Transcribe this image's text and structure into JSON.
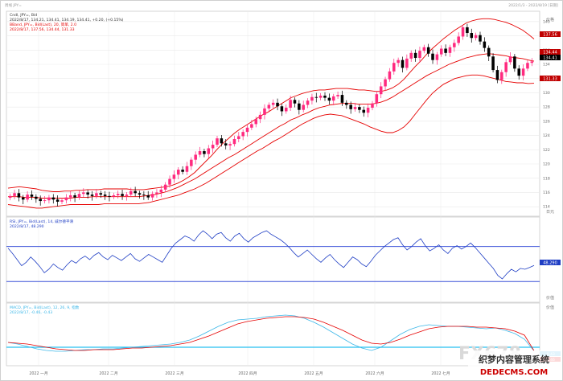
{
  "header": {
    "left": "周线 JPY=",
    "right": "2022/1/3 - 2022/8/19 [日期]"
  },
  "legend": {
    "main": [
      "Cndl, JPY=, Bid",
      "2022/8/17, 134.21, 134.41, 134.19, 134.41, +0.20, (+0.15%)"
    ],
    "bband": [
      "BBand, JPY=, Bid(Last), 20, 简单, 2.0",
      "2022/8/17, 137.56, 134.44, 131.33"
    ],
    "rsi": [
      "RSI, JPY=, Bid(Last), 14, 威尔德平滑",
      "2022/8/17, 48.290"
    ],
    "macd": [
      "MACD, JPY=, Bid(Last), 12, 26, 9, 指数",
      "2022/8/17, -0.46, -0.43"
    ]
  },
  "price_labels": {
    "bb_upper": "137.56",
    "bb_mid": "134.44",
    "last": "134.41",
    "bb_lower": "131.33",
    "rsi_last": "48.290",
    "macd_a": "-0.43",
    "macd_b": "-0.46"
  },
  "axis_titles": {
    "price": "价格",
    "price_unit": "日元",
    "rsi": "价值",
    "macd": "价值"
  },
  "x_ticks": [
    "2022 一月",
    "2022 二月",
    "2022 三月",
    "2022 四月",
    "2022 五月",
    "2022 六月",
    "2022 七月"
  ],
  "watermark": {
    "text1": "FX678",
    "cn": "织梦内容管理系统",
    "url": "DEDECMS.COM"
  },
  "colors": {
    "candle_up": "#ff2a7f",
    "candle_down": "#000000",
    "bband": "#e60000",
    "rsi": "#1f3ec4",
    "rsi_ref": "#3a50d8",
    "macd": "#3cb7e8",
    "signal": "#e60000",
    "zero": "#27c0f0",
    "grid": "#e9e9e9"
  },
  "chart_data": [
    {
      "type": "candlestick",
      "ylim": [
        113,
        141
      ],
      "y_ticks": [
        114,
        116,
        118,
        120,
        122,
        124,
        126,
        128,
        130,
        132,
        134,
        136,
        138,
        140
      ],
      "close": [
        115.5,
        115.9,
        115.3,
        115.0,
        115.7,
        115.4,
        115.1,
        114.8,
        114.9,
        115.3,
        115.0,
        114.7,
        114.9,
        115.3,
        115.6,
        115.3,
        115.8,
        116.0,
        115.7,
        115.5,
        115.9,
        115.7,
        115.5,
        115.4,
        115.6,
        115.8,
        115.5,
        115.7,
        116.2,
        115.9,
        115.7,
        115.6,
        115.3,
        115.8,
        116.0,
        116.4,
        117.1,
        117.9,
        118.5,
        119.2,
        118.9,
        119.7,
        120.6,
        121.3,
        121.8,
        121.4,
        122.2,
        122.7,
        123.6,
        122.9,
        122.6,
        122.8,
        123.5,
        123.9,
        124.5,
        125.1,
        125.6,
        126.3,
        126.9,
        127.8,
        128.3,
        128.6,
        128.1,
        127.4,
        127.9,
        129.0,
        128.5,
        127.6,
        128.3,
        128.9,
        129.4,
        129.3,
        129.6,
        129.3,
        128.9,
        129.5,
        129.7,
        128.6,
        128.3,
        127.7,
        128.0,
        127.6,
        127.2,
        127.9,
        128.5,
        129.8,
        130.9,
        131.9,
        133.0,
        134.2,
        134.6,
        133.5,
        134.8,
        135.6,
        134.9,
        135.9,
        136.4,
        135.5,
        134.6,
        135.4,
        136.2,
        135.6,
        136.4,
        137.0,
        137.9,
        139.2,
        138.4,
        137.7,
        138.1,
        137.2,
        136.3,
        135.1,
        133.2,
        131.8,
        132.9,
        134.3,
        135.1,
        133.4,
        132.4,
        133.4,
        134.2,
        134.41
      ],
      "bb_upper": [
        116.6,
        116.7,
        116.8,
        116.7,
        116.6,
        116.5,
        116.3,
        116.2,
        116.1,
        116.1,
        116.2,
        116.2,
        116.3,
        116.3,
        116.4,
        116.4,
        116.4,
        116.5,
        116.5,
        116.5,
        116.5,
        116.5,
        116.4,
        116.4,
        116.4,
        116.5,
        116.6,
        116.7,
        116.8,
        117.0,
        117.3,
        117.7,
        118.2,
        118.8,
        119.6,
        120.4,
        121.2,
        122.1,
        122.9,
        123.6,
        124.3,
        124.9,
        125.4,
        125.9,
        126.4,
        126.9,
        127.3,
        127.8,
        128.3,
        128.8,
        129.3,
        129.6,
        129.9,
        130.1,
        130.3,
        130.4,
        130.4,
        130.5,
        130.6,
        130.6,
        130.6,
        130.5,
        130.4,
        130.4,
        130.3,
        130.2,
        130.2,
        130.4,
        130.7,
        131.2,
        131.9,
        132.8,
        133.7,
        134.5,
        135.4,
        136.2,
        136.9,
        137.6,
        138.2,
        138.8,
        139.3,
        139.8,
        140.1,
        140.3,
        140.4,
        140.4,
        140.3,
        140.1,
        139.9,
        139.6,
        139.2,
        138.8,
        138.2,
        137.56
      ],
      "bb_mid": [
        115.4,
        115.4,
        115.4,
        115.3,
        115.3,
        115.3,
        115.2,
        115.2,
        115.2,
        115.2,
        115.2,
        115.2,
        115.3,
        115.3,
        115.3,
        115.4,
        115.4,
        115.4,
        115.4,
        115.4,
        115.4,
        115.4,
        115.4,
        115.4,
        115.5,
        115.6,
        115.7,
        115.9,
        116.1,
        116.4,
        116.7,
        117.1,
        117.5,
        117.9,
        118.4,
        118.9,
        119.4,
        119.9,
        120.4,
        120.9,
        121.3,
        121.8,
        122.3,
        122.8,
        123.3,
        123.8,
        124.3,
        124.8,
        125.3,
        125.7,
        126.2,
        126.5,
        126.9,
        127.2,
        127.6,
        127.9,
        128.1,
        128.3,
        128.4,
        128.5,
        128.5,
        128.5,
        128.4,
        128.4,
        128.4,
        128.5,
        128.7,
        129.0,
        129.4,
        129.9,
        130.4,
        130.9,
        131.4,
        131.9,
        132.4,
        132.8,
        133.2,
        133.6,
        134.0,
        134.3,
        134.6,
        134.9,
        135.1,
        135.3,
        135.4,
        135.5,
        135.4,
        135.3,
        135.2,
        135.0,
        134.9,
        134.8,
        134.6,
        134.44
      ],
      "bb_lower": [
        114.3,
        114.2,
        114.1,
        114.0,
        113.9,
        113.8,
        113.8,
        113.9,
        114.0,
        114.1,
        114.2,
        114.3,
        114.3,
        114.3,
        114.3,
        114.3,
        114.3,
        114.4,
        114.4,
        114.4,
        114.4,
        114.4,
        114.4,
        114.4,
        114.5,
        114.6,
        114.8,
        115.0,
        115.2,
        115.4,
        115.6,
        115.9,
        116.2,
        116.5,
        116.9,
        117.3,
        117.8,
        118.3,
        118.8,
        119.3,
        119.8,
        120.3,
        120.8,
        121.3,
        121.8,
        122.2,
        122.7,
        123.2,
        123.6,
        124.1,
        124.6,
        125.1,
        125.6,
        126.0,
        126.4,
        126.7,
        126.9,
        127.0,
        126.9,
        126.8,
        126.5,
        126.2,
        125.9,
        125.6,
        125.2,
        124.9,
        124.6,
        124.4,
        124.4,
        124.7,
        125.2,
        126.0,
        127.0,
        128.0,
        129.0,
        129.9,
        130.6,
        131.2,
        131.6,
        132.0,
        132.2,
        132.4,
        132.5,
        132.5,
        132.4,
        132.2,
        132.0,
        131.8,
        131.6,
        131.5,
        131.4,
        131.4,
        131.3,
        131.33
      ]
    },
    {
      "type": "line",
      "ylim": [
        10,
        100
      ],
      "ref_lines": [
        70,
        30
      ],
      "values": [
        68,
        62,
        55,
        48,
        52,
        58,
        53,
        47,
        40,
        44,
        50,
        46,
        43,
        49,
        54,
        51,
        56,
        59,
        55,
        60,
        63,
        58,
        55,
        60,
        57,
        54,
        58,
        62,
        56,
        53,
        57,
        61,
        58,
        55,
        52,
        60,
        68,
        74,
        78,
        82,
        80,
        76,
        83,
        88,
        84,
        79,
        84,
        86,
        80,
        76,
        82,
        85,
        79,
        75,
        80,
        83,
        86,
        88,
        84,
        81,
        78,
        74,
        69,
        63,
        58,
        62,
        66,
        61,
        56,
        52,
        57,
        61,
        55,
        50,
        46,
        52,
        58,
        55,
        50,
        47,
        53,
        60,
        65,
        70,
        74,
        78,
        80,
        72,
        66,
        70,
        75,
        79,
        71,
        65,
        68,
        72,
        66,
        62,
        68,
        71,
        67,
        70,
        74,
        69,
        63,
        57,
        51,
        45,
        37,
        33,
        39,
        44,
        41,
        45,
        44,
        46,
        48.29
      ]
    },
    {
      "type": "line",
      "ylim": [
        -2,
        5
      ],
      "series": [
        {
          "values": [
            0.6,
            0.4,
            0.1,
            -0.2,
            -0.4,
            -0.5,
            -0.5,
            -0.4,
            -0.3,
            -0.3,
            -0.2,
            -0.2,
            -0.1,
            0.0,
            0.1,
            0.2,
            0.3,
            0.4,
            0.6,
            0.9,
            1.4,
            2.0,
            2.6,
            3.1,
            3.4,
            3.5,
            3.6,
            3.8,
            3.9,
            4.0,
            3.9,
            3.6,
            3.1,
            2.5,
            1.8,
            1.1,
            0.4,
            -0.1,
            -0.4,
            0.0,
            0.8,
            1.6,
            2.2,
            2.6,
            2.8,
            2.7,
            2.6,
            2.6,
            2.5,
            2.4,
            2.3,
            2.4,
            2.1,
            1.7,
            1.0,
            -0.46
          ]
        },
        {
          "values": [
            0.6,
            0.5,
            0.4,
            0.2,
            0.0,
            -0.2,
            -0.3,
            -0.4,
            -0.4,
            -0.3,
            -0.3,
            -0.3,
            -0.2,
            -0.1,
            -0.1,
            0.0,
            0.1,
            0.2,
            0.4,
            0.6,
            1.0,
            1.4,
            1.9,
            2.4,
            2.9,
            3.2,
            3.4,
            3.6,
            3.7,
            3.8,
            3.8,
            3.7,
            3.5,
            3.1,
            2.6,
            2.1,
            1.5,
            0.9,
            0.5,
            0.4,
            0.6,
            1.0,
            1.5,
            1.9,
            2.3,
            2.5,
            2.6,
            2.6,
            2.6,
            2.5,
            2.5,
            2.4,
            2.3,
            2.0,
            1.5,
            -0.43
          ]
        }
      ]
    }
  ]
}
